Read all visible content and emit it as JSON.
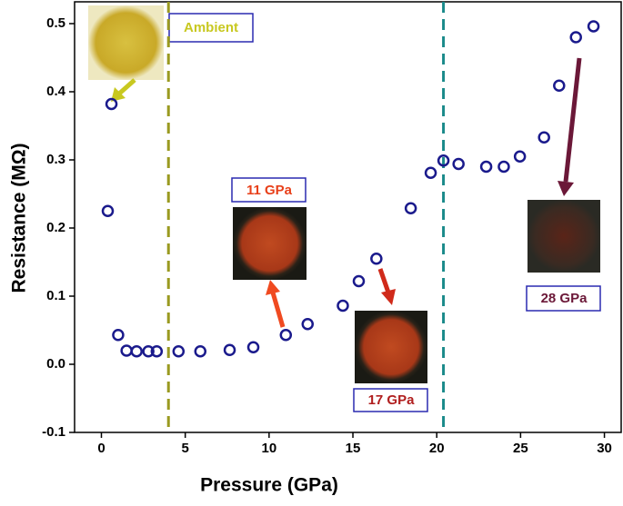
{
  "chart_data": {
    "type": "scatter",
    "x_label": "Pressure (GPa)",
    "y_label": "Resistance (MΩ)",
    "xlim": [
      -1.6,
      31
    ],
    "ylim": [
      -0.1,
      0.532
    ],
    "xticks": [
      0,
      5,
      10,
      15,
      20,
      25,
      30
    ],
    "yticks": [
      -0.1,
      {
        "value": 0,
        "label": "0.0"
      },
      0.1,
      0.2,
      0.3,
      0.4,
      0.5
    ],
    "series": [
      {
        "color": "#1a1a8c",
        "x": [
          0.38,
          0.6,
          1.0,
          1.5,
          2.1,
          2.8,
          3.3,
          4.6,
          5.9,
          7.65,
          9.06,
          11.0,
          12.3,
          14.4,
          15.35,
          16.4,
          18.45,
          19.64,
          20.4,
          21.3,
          22.95,
          24.0,
          24.96,
          26.4,
          27.3,
          28.3,
          29.35
        ],
        "values": [
          0.225,
          0.382,
          0.043,
          0.02,
          0.019,
          0.019,
          0.019,
          0.019,
          0.019,
          0.021,
          0.025,
          0.043,
          0.059,
          0.086,
          0.122,
          0.155,
          0.229,
          0.281,
          0.299,
          0.294,
          0.29,
          0.29,
          0.305,
          0.333,
          0.409,
          0.48,
          0.496
        ]
      }
    ],
    "vlines": [
      {
        "x": 4,
        "color": "#9a9a20"
      },
      {
        "x": 20.4,
        "color": "#1a8a8a"
      }
    ],
    "annotations": [
      {
        "text": "Ambient",
        "color": "#c8c820"
      },
      {
        "text": "11 GPa",
        "color": "#e8401a"
      },
      {
        "text": "17 GPa",
        "color": "#b01e1e"
      },
      {
        "text": "28 GPa",
        "color": "#6b1838"
      }
    ]
  }
}
